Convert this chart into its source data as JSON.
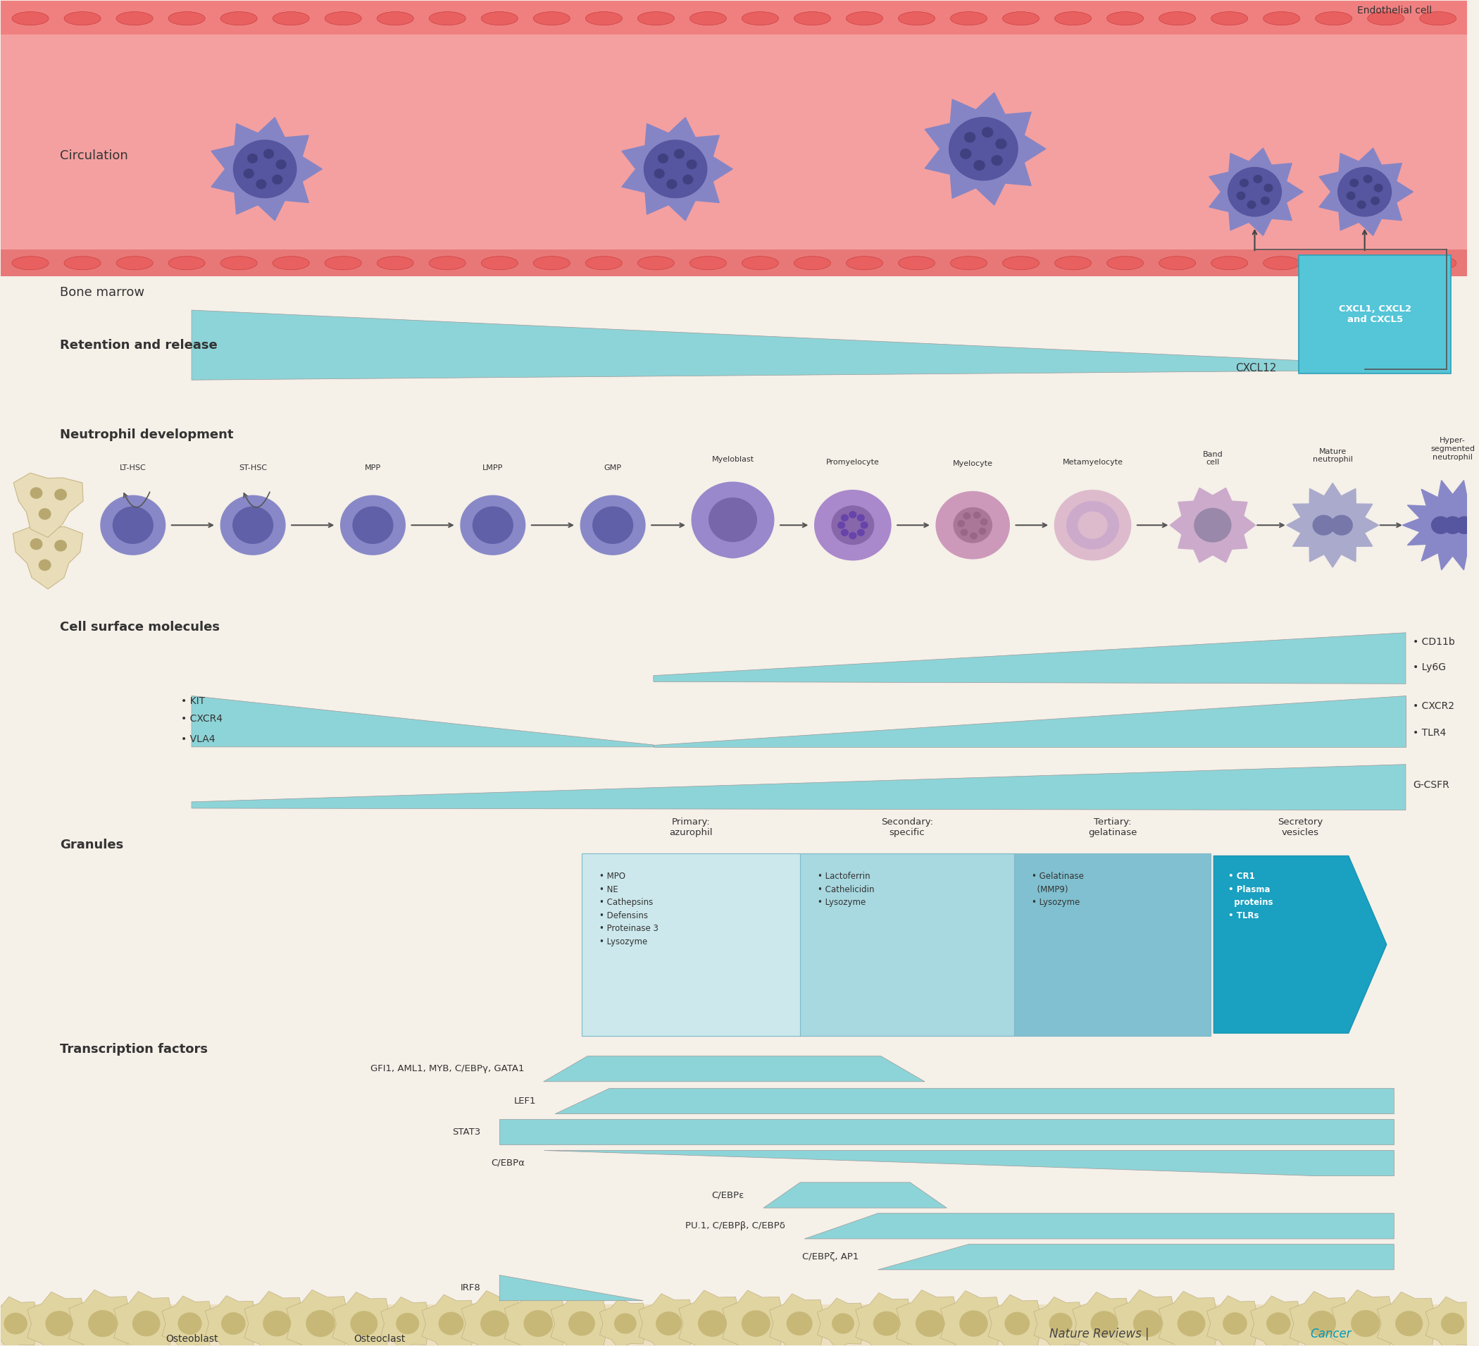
{
  "bg_color": "#f5f0e8",
  "circulation_bg": "#f4a0a0",
  "endothelial_strip_color": "#f08080",
  "teal_color": "#7bc8c8",
  "teal_dark": "#2da8b8",
  "teal_mid": "#5bbccc",
  "teal_light": "#8dd4d8",
  "teal_bright": "#40b8cc",
  "white": "#ffffff",
  "text_dark": "#333333",
  "text_black": "#222222",
  "purple_cell": "#7070b8",
  "purple_light": "#9090cc",
  "osteoblast_color": "#d8cfa8",
  "section_labels": {
    "circulation": "Circulation",
    "bone_marrow": "Bone marrow",
    "retention": "Retention and release",
    "neutrophil_dev": "Neutrophil development",
    "cell_surface": "Cell surface molecules",
    "granules": "Granules",
    "transcription": "Transcription factors"
  },
  "retention_label": "CXCL12",
  "cxcl_box_label": "CXCL1, CXCL2\nand CXCL5",
  "endothelial_label": "Endothelial cell",
  "dev_stages": [
    "LT-HSC",
    "ST-HSC",
    "MPP",
    "LMPP",
    "GMP",
    "Myeloblast",
    "Promyelocyte",
    "Myelocyte",
    "Metamyelocyte",
    "Band\ncell",
    "Mature\nneutrophil",
    "Hyper-\nsegmented\nneutrophil"
  ],
  "granule_titles": [
    "Primary:\nazurophil",
    "Secondary:\nspecific",
    "Tertiary:\ngelatinase",
    "Secretory\nvesicles"
  ],
  "granule_contents": [
    "• MPO\n• NE\n• Cathepsins\n• Defensins\n• Proteinase 3\n• Lysozyme",
    "• Lactoferrin\n• Cathelicidin\n• Lysozyme",
    "• Gelatinase\n  (MMP9)\n• Lysozyme",
    "• CR1\n• Plasma\n  proteins\n• TLRs"
  ],
  "tf_labels": [
    "GFI1, AML1, MYB, C/EBPγ, GATA1",
    "LEF1",
    "STAT3",
    "C/EBPα",
    "C/EBPε",
    "PU.1, C/EBPβ, C/EBPδ",
    "C/EBPζ, AP1",
    "IRF8"
  ]
}
